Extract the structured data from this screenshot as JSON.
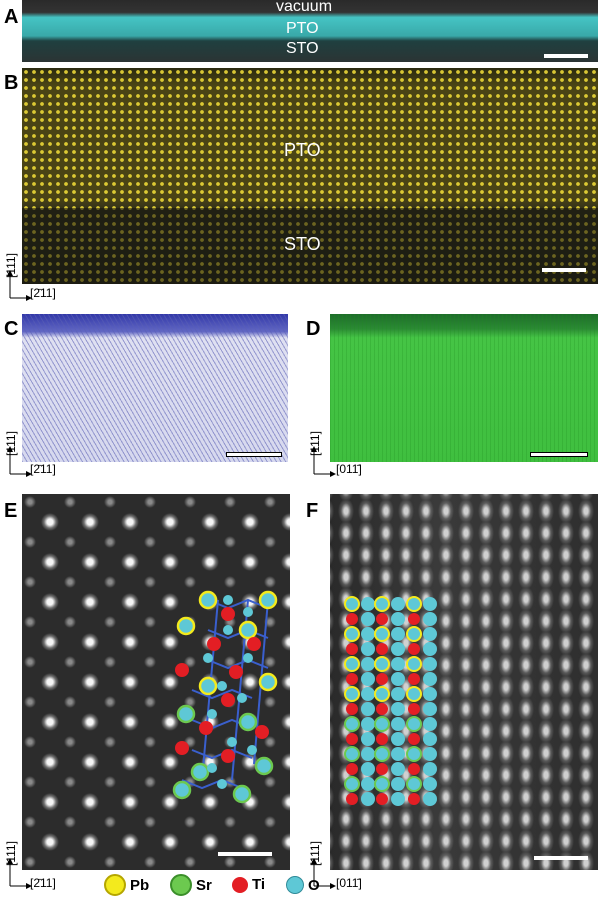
{
  "panels": {
    "A": {
      "letter": "A",
      "labels": [
        "vacuum",
        "PTO",
        "STO"
      ]
    },
    "B": {
      "letter": "B",
      "labels": [
        "PTO",
        "STO"
      ]
    },
    "C": {
      "letter": "C"
    },
    "D": {
      "letter": "D"
    },
    "E": {
      "letter": "E"
    },
    "F": {
      "letter": "F"
    }
  },
  "axes": {
    "vertical": "[111]",
    "h211": "[2̄11]",
    "h011": "[011̄]"
  },
  "legend": [
    {
      "label": "Pb",
      "color": "#f3ea1d",
      "ring": "#b5a600"
    },
    {
      "label": "Sr",
      "color": "#6cc94f",
      "ring": "#3b8f2a"
    },
    {
      "label": "Ti",
      "color": "#e31e24",
      "ring": "#e31e24"
    },
    {
      "label": "O",
      "color": "#5ec8d6",
      "ring": "#2f8a97"
    }
  ],
  "colors": {
    "pto_cyan": "#3fb7b7",
    "pto_yellow": "#f5e13a",
    "panel_c": "#6b6fc0",
    "panel_d": "#3cbf3c",
    "bond": "#3a5fcd"
  }
}
